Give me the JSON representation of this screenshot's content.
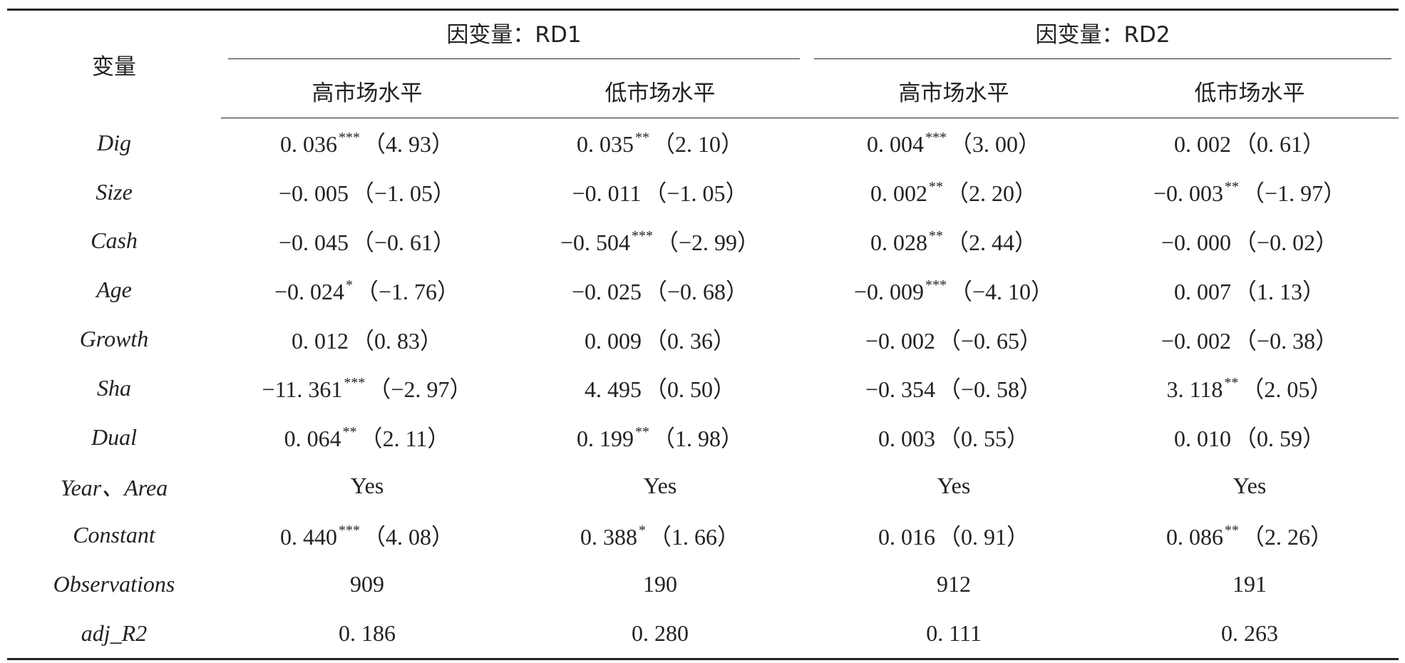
{
  "header": {
    "variable_label": "变量",
    "dep_vars": [
      {
        "label": "因变量：RD1",
        "groups": [
          "高市场水平",
          "低市场水平"
        ]
      },
      {
        "label": "因变量：RD2",
        "groups": [
          "高市场水平",
          "低市场水平"
        ]
      }
    ]
  },
  "rows": [
    {
      "name": "Dig",
      "cells": [
        {
          "v": "0. 036",
          "stars": "***",
          "t": "（4. 93）"
        },
        {
          "v": "0. 035",
          "stars": "**",
          "t": "（2. 10）"
        },
        {
          "v": "0. 004",
          "stars": "***",
          "t": "（3. 00）"
        },
        {
          "v": "0. 002",
          "stars": "",
          "t": "（0. 61）"
        }
      ]
    },
    {
      "name": "Size",
      "cells": [
        {
          "v": "−0. 005",
          "stars": "",
          "t": "（−1. 05）"
        },
        {
          "v": "−0. 011",
          "stars": "",
          "t": "（−1. 05）"
        },
        {
          "v": "0. 002",
          "stars": "**",
          "t": "（2. 20）"
        },
        {
          "v": "−0. 003",
          "stars": "**",
          "t": "（−1. 97）"
        }
      ]
    },
    {
      "name": "Cash",
      "cells": [
        {
          "v": "−0. 045",
          "stars": "",
          "t": "（−0. 61）"
        },
        {
          "v": "−0. 504",
          "stars": "***",
          "t": "（−2. 99）"
        },
        {
          "v": "0. 028",
          "stars": "**",
          "t": "（2. 44）"
        },
        {
          "v": "−0. 000",
          "stars": "",
          "t": "（−0. 02）"
        }
      ]
    },
    {
      "name": "Age",
      "cells": [
        {
          "v": "−0. 024",
          "stars": "*",
          "t": "（−1. 76）"
        },
        {
          "v": "−0. 025",
          "stars": "",
          "t": "（−0. 68）"
        },
        {
          "v": "−0. 009",
          "stars": "***",
          "t": "（−4. 10）"
        },
        {
          "v": "0. 007",
          "stars": "",
          "t": "（1. 13）"
        }
      ]
    },
    {
      "name": "Growth",
      "cells": [
        {
          "v": "0. 012",
          "stars": "",
          "t": "（0. 83）"
        },
        {
          "v": "0. 009",
          "stars": "",
          "t": "（0. 36）"
        },
        {
          "v": "−0. 002",
          "stars": "",
          "t": "（−0. 65）"
        },
        {
          "v": "−0. 002",
          "stars": "",
          "t": "（−0. 38）"
        }
      ]
    },
    {
      "name": "Sha",
      "cells": [
        {
          "v": "−11. 361",
          "stars": "***",
          "t": "（−2. 97）"
        },
        {
          "v": "4. 495",
          "stars": "",
          "t": "（0. 50）"
        },
        {
          "v": "−0. 354",
          "stars": "",
          "t": "（−0. 58）"
        },
        {
          "v": "3. 118",
          "stars": "**",
          "t": "（2. 05）"
        }
      ]
    },
    {
      "name": "Dual",
      "cells": [
        {
          "v": "0. 064",
          "stars": "**",
          "t": "（2. 11）"
        },
        {
          "v": "0. 199",
          "stars": "**",
          "t": "（1. 98）"
        },
        {
          "v": "0. 003",
          "stars": "",
          "t": "（0. 55）"
        },
        {
          "v": "0. 010",
          "stars": "",
          "t": "（0. 59）"
        }
      ]
    },
    {
      "name": "Year、Area",
      "cells": [
        {
          "v": "Yes",
          "stars": "",
          "t": ""
        },
        {
          "v": "Yes",
          "stars": "",
          "t": ""
        },
        {
          "v": "Yes",
          "stars": "",
          "t": ""
        },
        {
          "v": "Yes",
          "stars": "",
          "t": ""
        }
      ]
    },
    {
      "name": "Constant",
      "cells": [
        {
          "v": "0. 440",
          "stars": "***",
          "t": "（4. 08）"
        },
        {
          "v": "0. 388",
          "stars": "*",
          "t": "（1. 66）"
        },
        {
          "v": "0. 016",
          "stars": "",
          "t": "（0. 91）"
        },
        {
          "v": "0. 086",
          "stars": "**",
          "t": "（2. 26）"
        }
      ]
    },
    {
      "name": "Observations",
      "cells": [
        {
          "v": "909",
          "stars": "",
          "t": ""
        },
        {
          "v": "190",
          "stars": "",
          "t": ""
        },
        {
          "v": "912",
          "stars": "",
          "t": ""
        },
        {
          "v": "191",
          "stars": "",
          "t": ""
        }
      ]
    },
    {
      "name": "adj_R2",
      "cells": [
        {
          "v": "0. 186",
          "stars": "",
          "t": ""
        },
        {
          "v": "0. 280",
          "stars": "",
          "t": ""
        },
        {
          "v": "0. 111",
          "stars": "",
          "t": ""
        },
        {
          "v": "0. 263",
          "stars": "",
          "t": ""
        }
      ]
    }
  ]
}
